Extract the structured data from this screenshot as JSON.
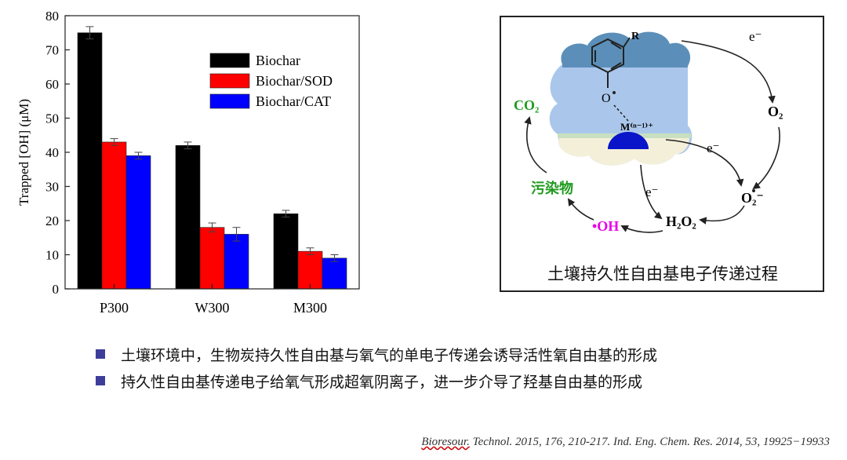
{
  "chart_data": {
    "type": "bar",
    "categories": [
      "P300",
      "W300",
      "M300"
    ],
    "series": [
      {
        "name": "Biochar",
        "color": "#000000",
        "values": [
          75,
          42,
          22
        ],
        "errors": [
          1.8,
          1.0,
          1.0
        ]
      },
      {
        "name": "Biochar/SOD",
        "color": "#ff0000",
        "values": [
          43,
          18,
          11
        ],
        "errors": [
          1.0,
          1.3,
          1.0
        ]
      },
      {
        "name": "Biochar/CAT",
        "color": "#0000ff",
        "values": [
          39,
          16,
          9
        ],
        "errors": [
          1.0,
          2.0,
          1.0
        ]
      }
    ],
    "ylabel": "Trapped [OH] (μM)",
    "xlabel": "",
    "ylim": [
      0,
      80
    ],
    "yticks": [
      0,
      10,
      20,
      30,
      40,
      50,
      60,
      70,
      80
    ],
    "legend_position": "top-right"
  },
  "diagram": {
    "caption": "土壤持久性自由基电子传递过程",
    "labels": {
      "e1": "e⁻",
      "e2": "e⁻",
      "e3": "e⁻",
      "o2": "O₂",
      "o2rad": "O₂⁻",
      "h2o2": "H₂O₂",
      "oh": "•OH",
      "pollutant": "污染物",
      "co2": "CO₂",
      "r": "R",
      "o": "O",
      "metal": "M⁽ⁿ⁻¹⁾⁺"
    }
  },
  "bullets": [
    "土壤环境中，生物炭持久性自由基与氧气的单电子传递会诱导活性氧自由基的形成",
    "持久性自由基传递电子给氧气形成超氧阴离子，进一步介导了羟基自由基的形成"
  ],
  "citation": {
    "underlined": "Bioresour.",
    "rest": " Technol. 2015, 176, 210-217. Ind. Eng. Chem. Res. 2014, 53, 19925−19933"
  }
}
